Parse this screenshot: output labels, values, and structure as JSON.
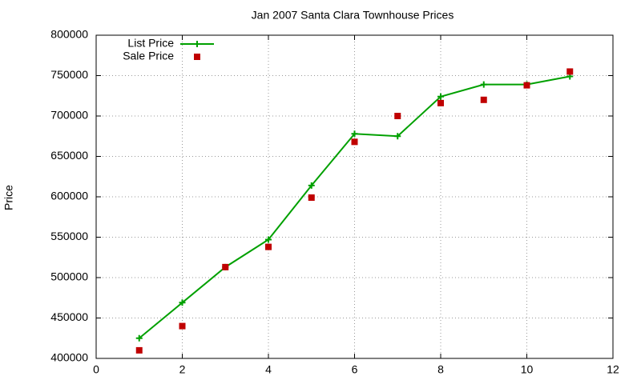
{
  "chart_data": {
    "type": "line",
    "title": "Jan 2007 Santa Clara Townhouse Prices",
    "y_label": "Price",
    "x": [
      1,
      2,
      3,
      4,
      5,
      6,
      7,
      8,
      9,
      10,
      11
    ],
    "series": [
      {
        "name": "List Price",
        "color": "#00a000",
        "line": true,
        "marker": "plus",
        "values": [
          425000,
          469000,
          513000,
          547000,
          614000,
          678000,
          675000,
          724000,
          739000,
          739000,
          749000
        ]
      },
      {
        "name": "Sale Price",
        "color": "#c00000",
        "line": false,
        "marker": "square",
        "values": [
          410000,
          440000,
          513000,
          538000,
          599000,
          668000,
          700000,
          716000,
          720000,
          738000,
          755000
        ]
      }
    ],
    "xlim": [
      0,
      12
    ],
    "xticks": [
      0,
      2,
      4,
      6,
      8,
      10,
      12
    ],
    "ylim": [
      400000,
      800000
    ],
    "yticks": [
      400000,
      450000,
      500000,
      550000,
      600000,
      650000,
      700000,
      750000,
      800000
    ],
    "grid": true,
    "legend": "top-left"
  }
}
